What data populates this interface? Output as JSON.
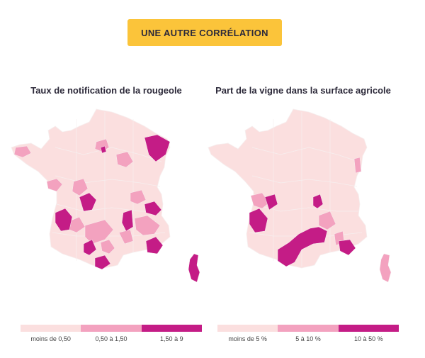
{
  "cta_button": {
    "label": "UNE AUTRE CORRÉLATION"
  },
  "colors": {
    "low": "#fbdfdf",
    "mid": "#f3a2bf",
    "high": "#c41c86",
    "border": "#f6efef"
  },
  "maps": [
    {
      "title": "Taux de notification de la rougeole",
      "legend": [
        "moins de 0,50",
        "0,50 à 1,50",
        "1,50 à 9"
      ]
    },
    {
      "title": "Part de la vigne dans la surface agricole",
      "legend": [
        "moins de 5 %",
        "5 à 10 %",
        "10 à 50 %"
      ]
    }
  ]
}
